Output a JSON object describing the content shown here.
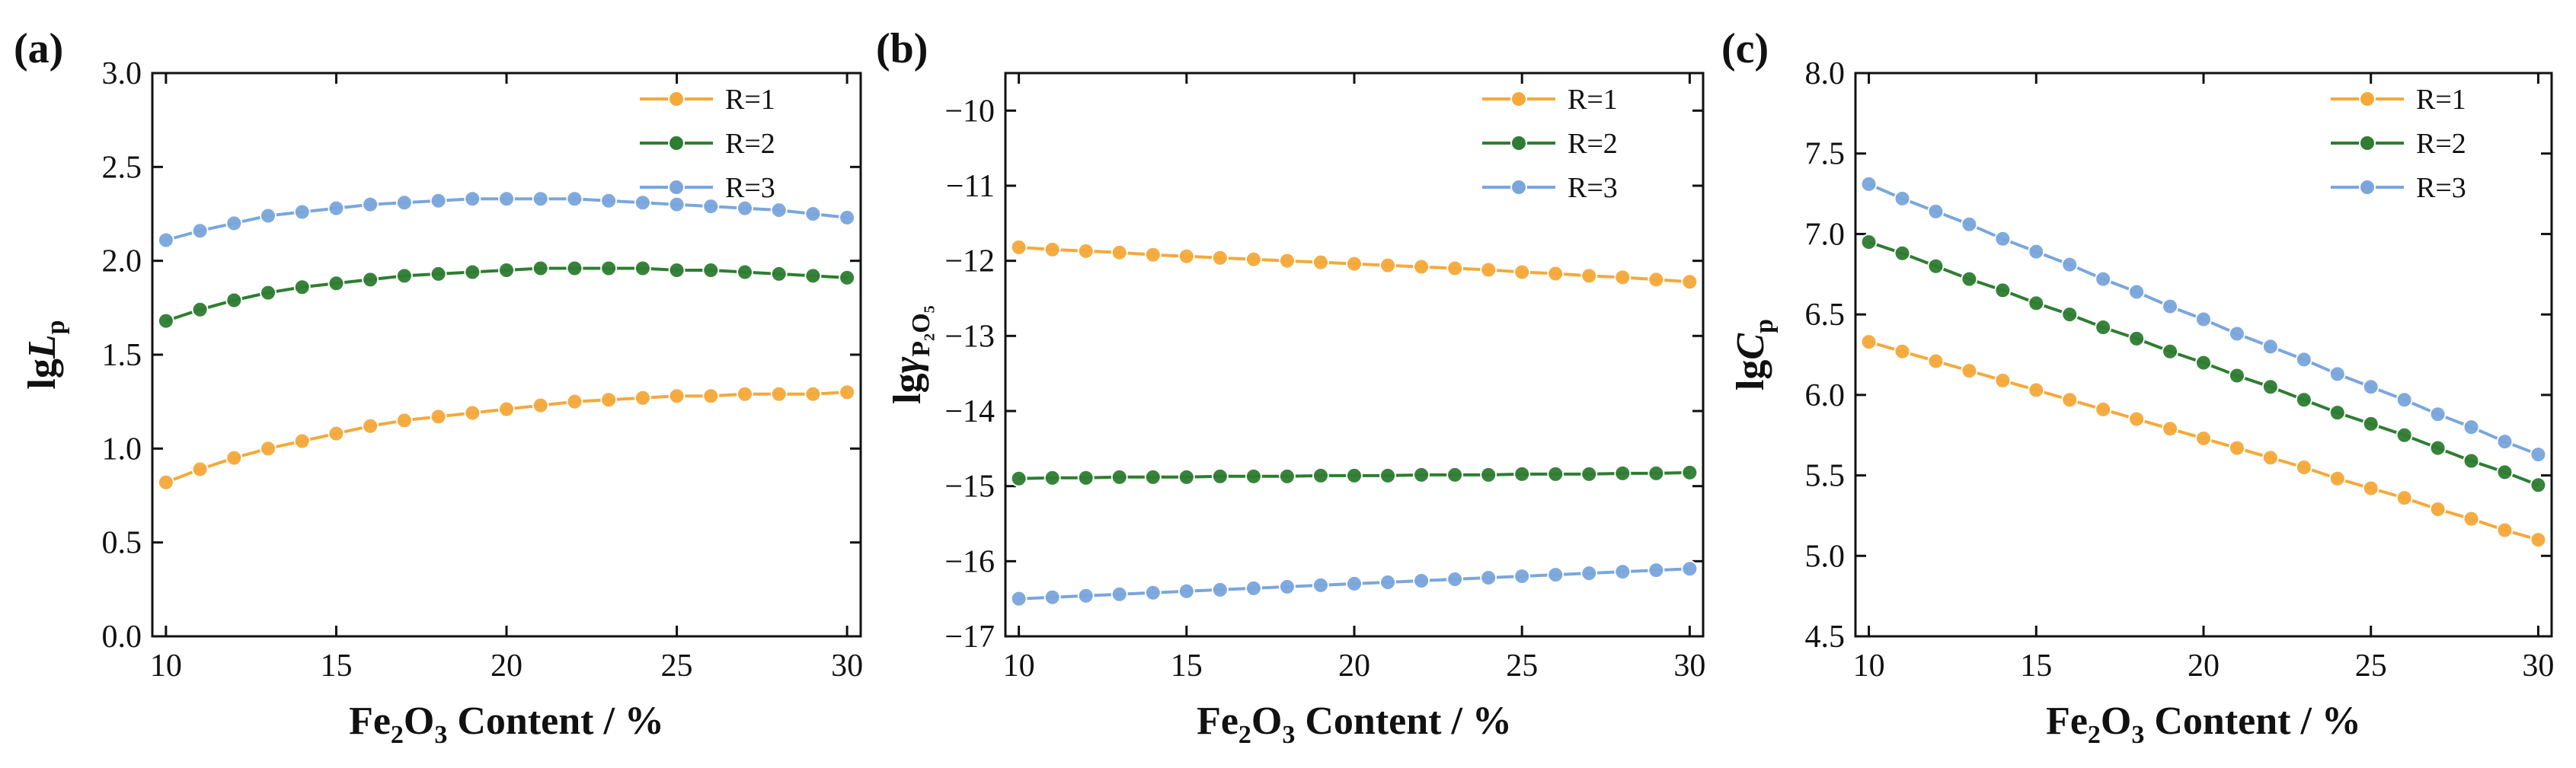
{
  "figure": {
    "colors": {
      "R=1": "#f4a93a",
      "R=2": "#2e7d32",
      "R=3": "#7aa6dc"
    }
  },
  "chart_data": [
    {
      "type": "line",
      "panel_letter": "(a)",
      "title": "",
      "xlabel": {
        "base": "Fe",
        "sub1": "2",
        "mid": "O",
        "sub2": "3",
        "rest": " Content / %"
      },
      "ylabel": {
        "base": "lg",
        "italic": "L",
        "sub": "p"
      },
      "xlim": [
        9.6,
        30.4
      ],
      "ylim": [
        0.0,
        3.0
      ],
      "xticks": [
        10,
        15,
        20,
        25,
        30
      ],
      "xtick_labels": [
        "10",
        "15",
        "20",
        "25",
        "30"
      ],
      "yticks": [
        0.0,
        0.5,
        1.0,
        1.5,
        2.0,
        2.5,
        3.0
      ],
      "ytick_labels": [
        "0.0",
        "0.5",
        "1.0",
        "1.5",
        "2.0",
        "2.5",
        "3.0"
      ],
      "x": [
        10,
        11,
        12,
        13,
        14,
        15,
        16,
        17,
        18,
        19,
        20,
        21,
        22,
        23,
        24,
        25,
        26,
        27,
        28,
        29,
        30
      ],
      "legend_position": "top-right",
      "series": [
        {
          "name": "R=1",
          "values": [
            0.82,
            0.89,
            0.95,
            1.0,
            1.04,
            1.08,
            1.12,
            1.15,
            1.17,
            1.19,
            1.21,
            1.23,
            1.25,
            1.26,
            1.27,
            1.28,
            1.28,
            1.29,
            1.29,
            1.29,
            1.3
          ]
        },
        {
          "name": "R=2",
          "values": [
            1.68,
            1.74,
            1.79,
            1.83,
            1.86,
            1.88,
            1.9,
            1.92,
            1.93,
            1.94,
            1.95,
            1.96,
            1.96,
            1.96,
            1.96,
            1.95,
            1.95,
            1.94,
            1.93,
            1.92,
            1.91
          ]
        },
        {
          "name": "R=3",
          "values": [
            2.11,
            2.16,
            2.2,
            2.24,
            2.26,
            2.28,
            2.3,
            2.31,
            2.32,
            2.33,
            2.33,
            2.33,
            2.33,
            2.32,
            2.31,
            2.3,
            2.29,
            2.28,
            2.27,
            2.25,
            2.23
          ]
        }
      ]
    },
    {
      "type": "line",
      "panel_letter": "(b)",
      "title": "",
      "xlabel": {
        "base": "Fe",
        "sub1": "2",
        "mid": "O",
        "sub2": "3",
        "rest": " Content / %"
      },
      "ylabel": {
        "base": "lg",
        "italic": "γ",
        "sub": "P₂O₅"
      },
      "xlim": [
        9.6,
        30.4
      ],
      "ylim": [
        -17.0,
        -9.5
      ],
      "xticks": [
        10,
        15,
        20,
        25,
        30
      ],
      "xtick_labels": [
        "10",
        "15",
        "20",
        "25",
        "30"
      ],
      "yticks": [
        -17,
        -16,
        -15,
        -14,
        -13,
        -12,
        -11,
        -10
      ],
      "ytick_labels": [
        "−17",
        "−16",
        "−15",
        "−14",
        "−13",
        "−12",
        "−11",
        "−10"
      ],
      "x": [
        10,
        11,
        12,
        13,
        14,
        15,
        16,
        17,
        18,
        19,
        20,
        21,
        22,
        23,
        24,
        25,
        26,
        27,
        28,
        29,
        30
      ],
      "legend_position": "top-right",
      "series": [
        {
          "name": "R=1",
          "values": [
            -11.82,
            -11.85,
            -11.87,
            -11.89,
            -11.92,
            -11.94,
            -11.96,
            -11.98,
            -12.0,
            -12.02,
            -12.04,
            -12.06,
            -12.08,
            -12.1,
            -12.12,
            -12.15,
            -12.17,
            -12.2,
            -12.22,
            -12.25,
            -12.28
          ]
        },
        {
          "name": "R=2",
          "values": [
            -14.9,
            -14.89,
            -14.89,
            -14.88,
            -14.88,
            -14.88,
            -14.87,
            -14.87,
            -14.87,
            -14.86,
            -14.86,
            -14.86,
            -14.85,
            -14.85,
            -14.85,
            -14.84,
            -14.84,
            -14.84,
            -14.83,
            -14.83,
            -14.82
          ]
        },
        {
          "name": "R=3",
          "values": [
            -16.5,
            -16.48,
            -16.46,
            -16.44,
            -16.42,
            -16.4,
            -16.38,
            -16.36,
            -16.34,
            -16.32,
            -16.3,
            -16.28,
            -16.26,
            -16.24,
            -16.22,
            -16.2,
            -16.18,
            -16.16,
            -16.14,
            -16.12,
            -16.1
          ]
        }
      ]
    },
    {
      "type": "line",
      "panel_letter": "(c)",
      "title": "",
      "xlabel": {
        "base": "Fe",
        "sub1": "2",
        "mid": "O",
        "sub2": "3",
        "rest": " Content / %"
      },
      "ylabel": {
        "base": "lg",
        "italic": "C",
        "sub": "p"
      },
      "xlim": [
        9.6,
        30.4
      ],
      "ylim": [
        4.5,
        8.0
      ],
      "xticks": [
        10,
        15,
        20,
        25,
        30
      ],
      "xtick_labels": [
        "10",
        "15",
        "20",
        "25",
        "30"
      ],
      "yticks": [
        4.5,
        5.0,
        5.5,
        6.0,
        6.5,
        7.0,
        7.5,
        8.0
      ],
      "ytick_labels": [
        "4.5",
        "5.0",
        "5.5",
        "6.0",
        "6.5",
        "7.0",
        "7.5",
        "8.0"
      ],
      "x": [
        10,
        11,
        12,
        13,
        14,
        15,
        16,
        17,
        18,
        19,
        20,
        21,
        22,
        23,
        24,
        25,
        26,
        27,
        28,
        29,
        30
      ],
      "legend_position": "top-right",
      "series": [
        {
          "name": "R=1",
          "values": [
            6.33,
            6.27,
            6.21,
            6.15,
            6.09,
            6.03,
            5.97,
            5.91,
            5.85,
            5.79,
            5.73,
            5.67,
            5.61,
            5.55,
            5.48,
            5.42,
            5.36,
            5.29,
            5.23,
            5.16,
            5.1
          ]
        },
        {
          "name": "R=2",
          "values": [
            6.95,
            6.88,
            6.8,
            6.72,
            6.65,
            6.57,
            6.5,
            6.42,
            6.35,
            6.27,
            6.2,
            6.12,
            6.05,
            5.97,
            5.89,
            5.82,
            5.75,
            5.67,
            5.59,
            5.52,
            5.44
          ]
        },
        {
          "name": "R=3",
          "values": [
            7.31,
            7.22,
            7.14,
            7.06,
            6.97,
            6.89,
            6.81,
            6.72,
            6.64,
            6.55,
            6.47,
            6.38,
            6.3,
            6.22,
            6.13,
            6.05,
            5.97,
            5.88,
            5.8,
            5.71,
            5.63
          ]
        }
      ]
    }
  ]
}
